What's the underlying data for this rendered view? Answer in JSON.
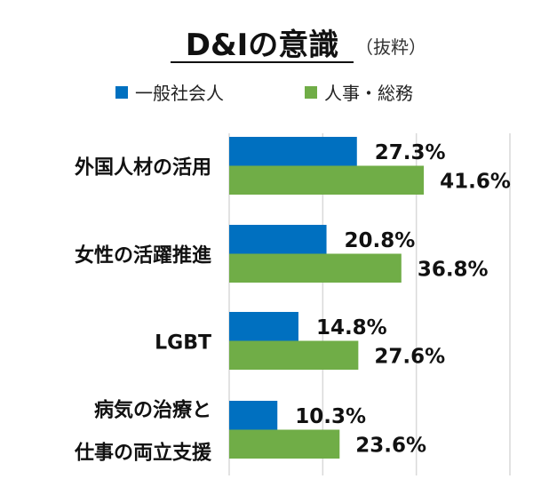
{
  "chart_data": {
    "type": "bar",
    "orientation": "horizontal",
    "title": "D&Iの意識",
    "subtitle": "（抜粋）",
    "categories": [
      "外国人材の活用",
      "女性の活躍推進",
      "LGBT",
      "病気の治療と\n仕事の両立支援"
    ],
    "series": [
      {
        "name": "一般社会人",
        "color": "#0070C0",
        "values": [
          27.3,
          20.8,
          14.8,
          10.3
        ],
        "labels": [
          "27.3%",
          "20.8%",
          "14.8%",
          "10.3%"
        ]
      },
      {
        "name": "人事・総務",
        "color": "#70AD47",
        "values": [
          41.6,
          36.8,
          27.6,
          23.6
        ],
        "labels": [
          "41.6%",
          "36.8%",
          "27.6%",
          "23.6%"
        ]
      }
    ],
    "xlim": [
      0,
      60
    ],
    "gridlines": [
      0,
      20,
      40,
      60
    ],
    "grid": true,
    "legend": "top",
    "xlabel": "",
    "ylabel": ""
  }
}
